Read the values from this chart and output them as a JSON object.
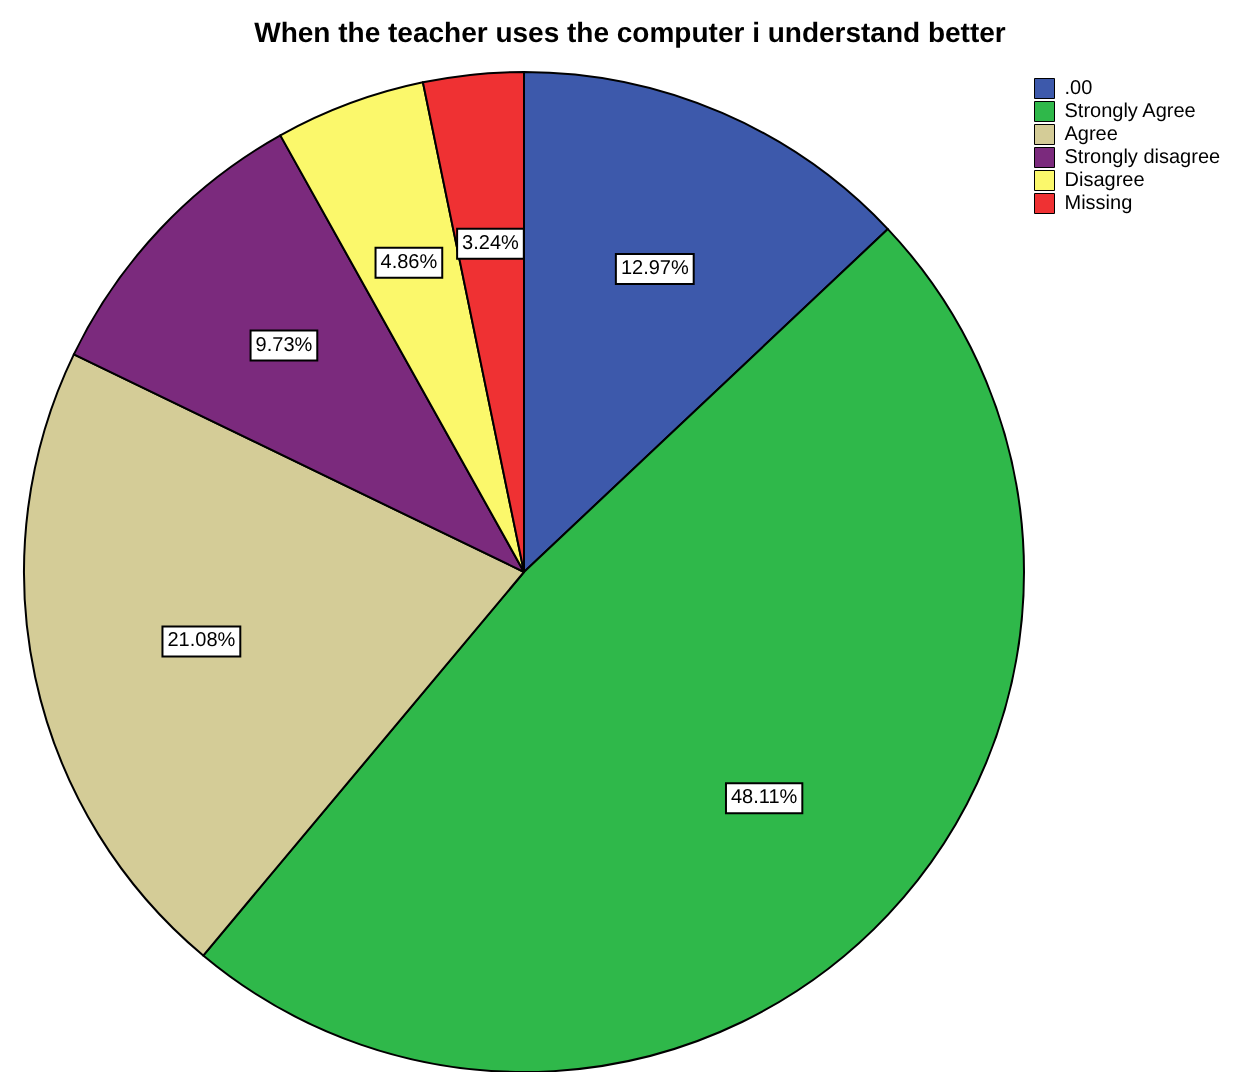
{
  "chart_data": {
    "type": "pie",
    "title": "When the teacher uses the computer i understand better",
    "categories": [
      ".00",
      "Strongly Agree",
      "Agree",
      "Strongly disagree",
      "Disagree",
      "Missing"
    ],
    "values": [
      12.97,
      48.11,
      21.08,
      9.73,
      4.86,
      3.24
    ],
    "colors": [
      "#3d59ab",
      "#2fb84a",
      "#d4cc97",
      "#7b2a7d",
      "#fbf86b",
      "#ef3133"
    ],
    "value_labels": [
      "12.97%",
      "48.11%",
      "21.08%",
      "9.73%",
      "4.86%",
      "3.24%"
    ],
    "legend": "top right"
  }
}
